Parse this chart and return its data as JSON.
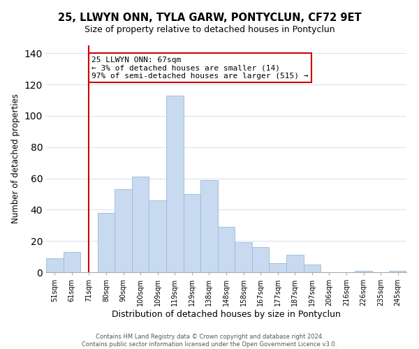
{
  "title": "25, LLWYN ONN, TYLA GARW, PONTYCLUN, CF72 9ET",
  "subtitle": "Size of property relative to detached houses in Pontyclun",
  "xlabel": "Distribution of detached houses by size in Pontyclun",
  "ylabel": "Number of detached properties",
  "categories": [
    "51sqm",
    "61sqm",
    "71sqm",
    "80sqm",
    "90sqm",
    "100sqm",
    "109sqm",
    "119sqm",
    "129sqm",
    "138sqm",
    "148sqm",
    "158sqm",
    "167sqm",
    "177sqm",
    "187sqm",
    "197sqm",
    "206sqm",
    "216sqm",
    "226sqm",
    "235sqm",
    "245sqm"
  ],
  "values": [
    9,
    13,
    0,
    38,
    53,
    61,
    46,
    113,
    50,
    59,
    29,
    19,
    16,
    6,
    11,
    5,
    0,
    0,
    1,
    0,
    1
  ],
  "bar_color": "#c8daf0",
  "bar_edge_color": "#9ab8d8",
  "vline_x_index": 2,
  "vline_color": "#cc0000",
  "annotation_title": "25 LLWYN ONN: 67sqm",
  "annotation_line1": "← 3% of detached houses are smaller (14)",
  "annotation_line2": "97% of semi-detached houses are larger (515) →",
  "annotation_box_color": "#ffffff",
  "annotation_box_edge": "#cc0000",
  "ylim": [
    0,
    145
  ],
  "footer1": "Contains HM Land Registry data © Crown copyright and database right 2024.",
  "footer2": "Contains public sector information licensed under the Open Government Licence v3.0.",
  "title_fontsize": 10.5,
  "subtitle_fontsize": 9,
  "xlabel_fontsize": 9,
  "ylabel_fontsize": 8.5,
  "tick_fontsize": 7,
  "annotation_fontsize": 8,
  "background_color": "#ffffff",
  "grid_color": "#d8e4f0"
}
